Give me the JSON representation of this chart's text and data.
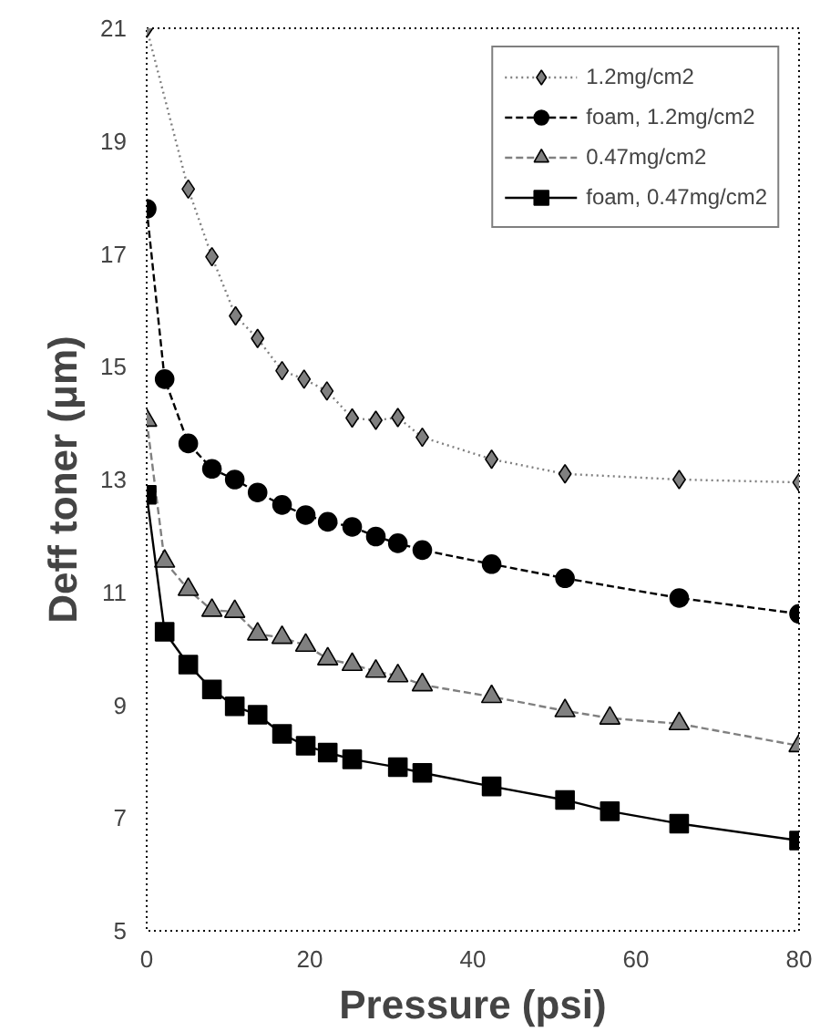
{
  "chart_data": {
    "type": "line",
    "xlabel": "Pressure (psi)",
    "ylabel": "Deff toner (μm)",
    "xlim": [
      0,
      80
    ],
    "xticks": [
      0,
      20,
      40,
      60,
      80
    ],
    "ylim": [
      5,
      21
    ],
    "yticks": [
      5,
      7,
      9,
      11,
      13,
      15,
      17,
      19,
      21
    ],
    "grid": false,
    "legend": "top right",
    "series": [
      {
        "name": "1.2mg/cm2",
        "color": "#808080",
        "marker": "diamond",
        "line_style": "dotted",
        "x": [
          0,
          5.1,
          8.0,
          10.9,
          13.6,
          16.6,
          19.3,
          22.1,
          25.2,
          28.1,
          30.8,
          33.8,
          42.3,
          51.3,
          65.3,
          80
        ],
        "values": [
          21,
          18.15,
          16.95,
          15.9,
          15.5,
          14.93,
          14.78,
          14.57,
          14.09,
          14.05,
          14.1,
          13.75,
          13.36,
          13.1,
          13.0,
          12.95
        ]
      },
      {
        "name": "foam, 1.2mg/cm2",
        "color": "#000000",
        "marker": "circle",
        "line_style": "dashed",
        "x": [
          0,
          2.2,
          5.1,
          8.0,
          10.8,
          13.6,
          16.6,
          19.5,
          22.2,
          25.2,
          28.1,
          30.8,
          33.8,
          42.3,
          51.3,
          65.3,
          80
        ],
        "values": [
          17.8,
          14.78,
          13.64,
          13.19,
          13.0,
          12.77,
          12.55,
          12.37,
          12.25,
          12.16,
          11.99,
          11.87,
          11.75,
          11.5,
          11.25,
          10.9,
          10.62
        ]
      },
      {
        "name": "0.47mg/cm2",
        "color": "#808080",
        "marker": "triangle",
        "line_style": "dashed",
        "x": [
          0,
          2.2,
          5.1,
          8.0,
          10.8,
          13.6,
          16.6,
          19.5,
          22.2,
          25.2,
          28.1,
          30.8,
          33.8,
          42.3,
          51.3,
          56.8,
          65.3,
          80
        ],
        "values": [
          14.05,
          11.55,
          11.05,
          10.68,
          10.66,
          10.26,
          10.2,
          10.06,
          9.82,
          9.72,
          9.6,
          9.52,
          9.36,
          9.15,
          8.9,
          8.77,
          8.67,
          8.28
        ]
      },
      {
        "name": "foam, 0.47mg/cm2",
        "color": "#000000",
        "marker": "square",
        "line_style": "solid",
        "x": [
          0,
          2.2,
          5.1,
          8.0,
          10.8,
          13.6,
          16.6,
          19.5,
          22.2,
          25.2,
          30.8,
          33.8,
          42.3,
          51.3,
          56.8,
          65.3,
          80
        ],
        "values": [
          12.73,
          10.3,
          9.72,
          9.28,
          8.98,
          8.83,
          8.49,
          8.28,
          8.16,
          8.04,
          7.9,
          7.8,
          7.56,
          7.32,
          7.12,
          6.9,
          6.6
        ]
      }
    ]
  }
}
